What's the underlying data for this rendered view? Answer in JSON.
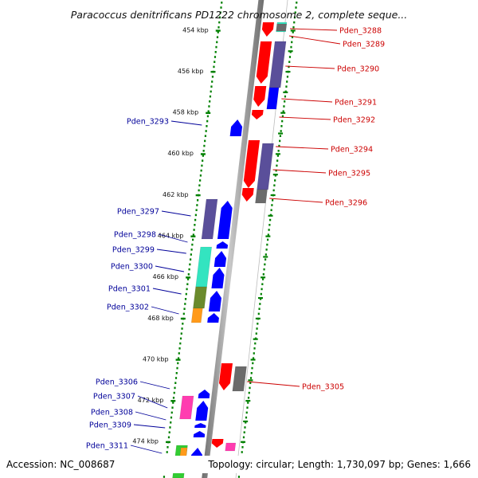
{
  "title": "Paracoccus denitrificans PD1222 chromosome 2, complete seque...",
  "footer": {
    "accession": "Accession: NC_008687",
    "summary": "Topology: circular; Length: 1,730,097 bp; Genes: 1,666"
  },
  "view": {
    "start_kbp": 453.6,
    "end_kbp": 475.6
  },
  "colors": {
    "backbone": "#999999",
    "forward_cds": "#ff0000",
    "reverse_cds": "#0000ff",
    "ruler_ticks": "#008000",
    "right_labels": "#cc0000",
    "left_labels": "#000099",
    "cog_purple": "#5a4f9a",
    "cog_grey": "#6b6b6b",
    "cog_cyan": "#33e4c0",
    "cog_olive": "#6a8a2c",
    "cog_orange": "#ff9a1a",
    "cog_magenta": "#ff3cb0",
    "cog_green": "#33cc33"
  },
  "ticks": [
    {
      "kbp": 454,
      "label": "454 kbp"
    },
    {
      "kbp": 456,
      "label": "456 kbp"
    },
    {
      "kbp": 458,
      "label": "458 kbp"
    },
    {
      "kbp": 460,
      "label": "460 kbp"
    },
    {
      "kbp": 462,
      "label": "462 kbp"
    },
    {
      "kbp": 464,
      "label": "464 kbp"
    },
    {
      "kbp": 466,
      "label": "466 kbp"
    },
    {
      "kbp": 468,
      "label": "468 kbp"
    },
    {
      "kbp": 470,
      "label": "470 kbp"
    },
    {
      "kbp": 472,
      "label": "472 kbp"
    },
    {
      "kbp": 474,
      "label": "474 kbp"
    }
  ],
  "right_genes": [
    {
      "name": "Pden_3288"
    },
    {
      "name": "Pden_3289"
    },
    {
      "name": "Pden_3290"
    },
    {
      "name": "Pden_3291"
    },
    {
      "name": "Pden_3292"
    },
    {
      "name": "Pden_3294"
    },
    {
      "name": "Pden_3295"
    },
    {
      "name": "Pden_3296"
    },
    {
      "name": "Pden_3305"
    }
  ],
  "left_genes": [
    {
      "name": "Pden_3293"
    },
    {
      "name": "Pden_3297"
    },
    {
      "name": "Pden_3298"
    },
    {
      "name": "Pden_3299"
    },
    {
      "name": "Pden_3300"
    },
    {
      "name": "Pden_3301"
    },
    {
      "name": "Pden_3302"
    },
    {
      "name": "Pden_3306"
    },
    {
      "name": "Pden_3307"
    },
    {
      "name": "Pden_3308"
    },
    {
      "name": "Pden_3309"
    },
    {
      "name": "Pden_3311"
    }
  ]
}
